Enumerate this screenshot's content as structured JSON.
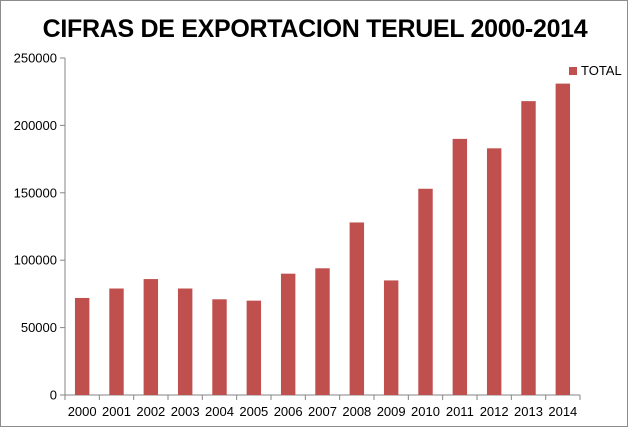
{
  "chart_data": {
    "type": "bar",
    "title": "CIFRAS DE EXPORTACION  TERUEL 2000-2014",
    "xlabel": "",
    "ylabel": "",
    "categories": [
      "2000",
      "2001",
      "2002",
      "2003",
      "2004",
      "2005",
      "2006",
      "2007",
      "2008",
      "2009",
      "2010",
      "2011",
      "2012",
      "2013",
      "2014"
    ],
    "series": [
      {
        "name": "TOTAL",
        "values": [
          72000,
          79000,
          86000,
          79000,
          71000,
          70000,
          90000,
          94000,
          128000,
          85000,
          153000,
          190000,
          183000,
          218000,
          231000
        ]
      }
    ],
    "ylim": [
      0,
      250000
    ],
    "yticks": [
      "0",
      "50000",
      "100000",
      "150000",
      "200000",
      "250000"
    ],
    "grid": false,
    "legend_position": "top-right",
    "colors": {
      "bar": "#C0504D",
      "axis": "#868686"
    }
  }
}
